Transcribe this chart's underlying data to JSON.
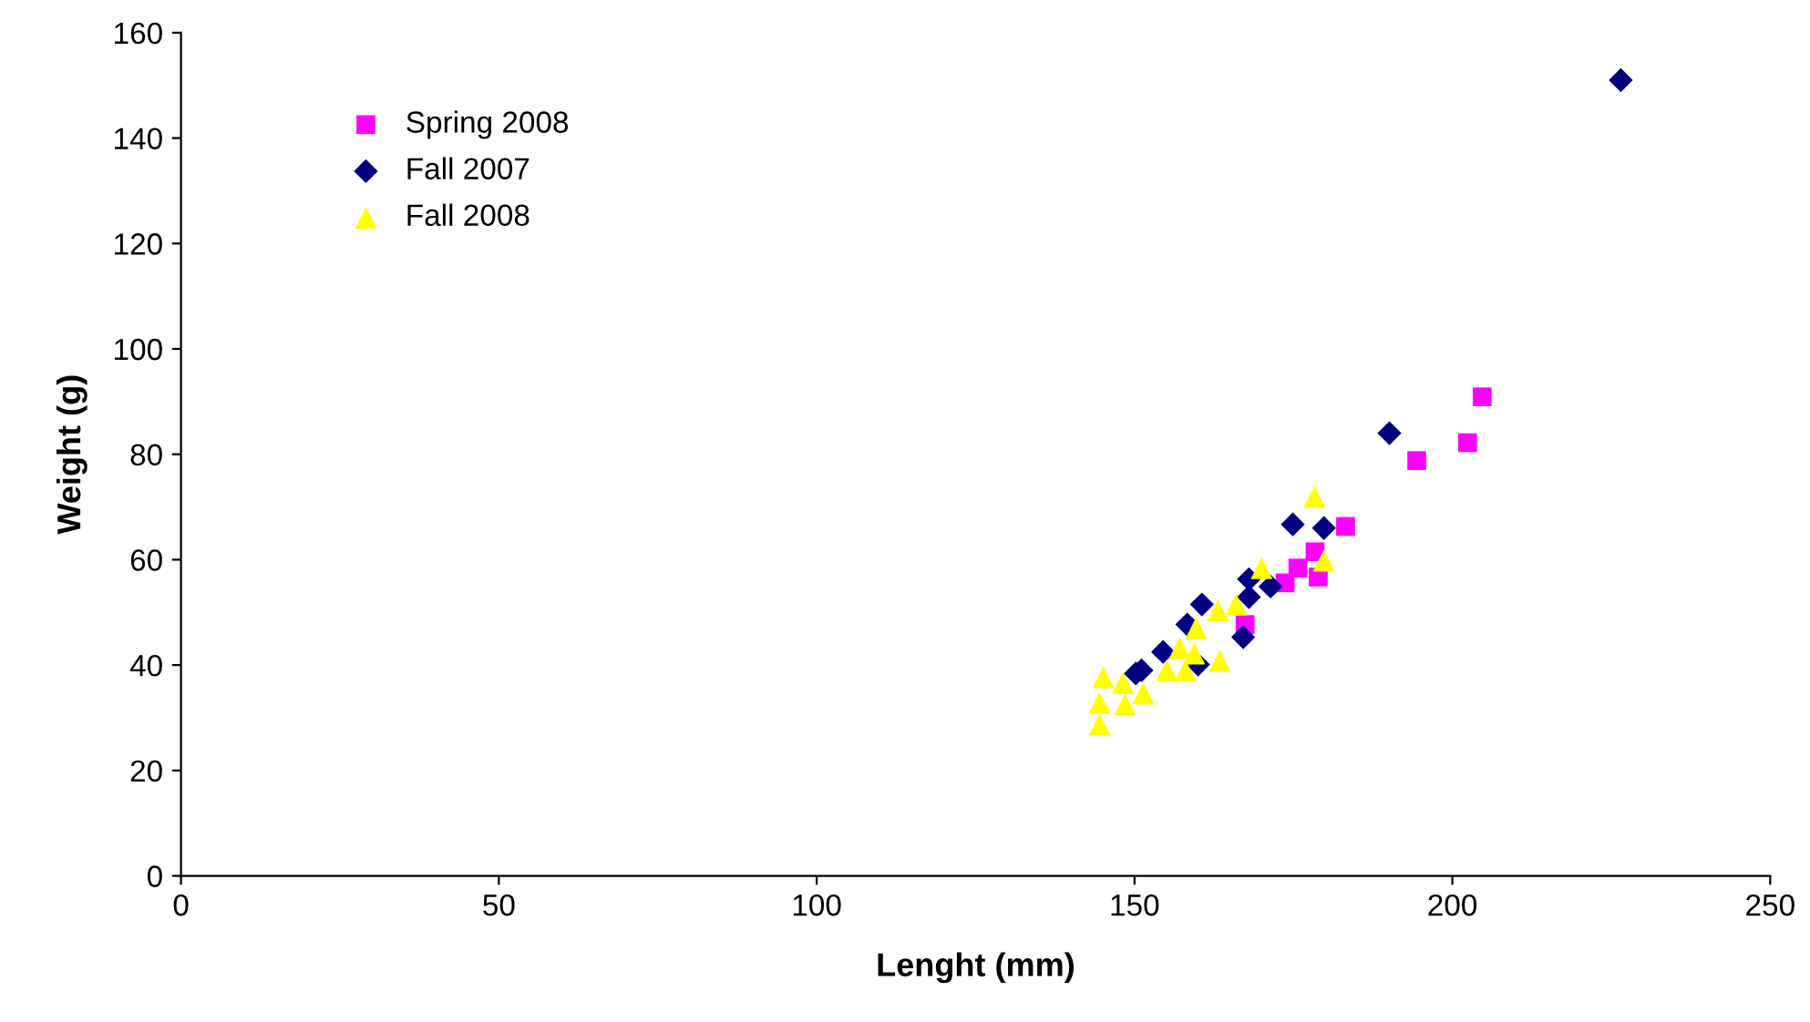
{
  "chart_data": {
    "type": "scatter",
    "xlabel": "Lenght (mm)",
    "ylabel": "Weight (g)",
    "xlim": [
      0,
      250
    ],
    "xticks": [
      0,
      50,
      100,
      150,
      200,
      250
    ],
    "ylim": [
      0,
      160
    ],
    "yticks": [
      0,
      20,
      40,
      60,
      80,
      100,
      120,
      140,
      160
    ],
    "grid": false,
    "legend": "top left",
    "series": [
      {
        "name": "Spring 2008",
        "color": "#ff00ff",
        "marker": "square",
        "x": [
          167.4,
          173.7,
          175.7,
          178.4,
          178.9,
          183.2,
          194.4,
          202.4,
          204.7
        ],
        "values": [
          47.7,
          55.6,
          58.4,
          61.5,
          56.7,
          66.3,
          78.8,
          82.2,
          90.9
        ]
      },
      {
        "name": "Fall 2007",
        "color": "#000080",
        "marker": "diamond",
        "x": [
          150.2,
          151.1,
          154.5,
          158.3,
          160.0,
          160.6,
          167.1,
          168.0,
          168.0,
          171.4,
          174.9,
          179.8,
          190.1,
          226.5
        ],
        "values": [
          38.4,
          39.0,
          42.5,
          47.7,
          40.1,
          51.5,
          45.3,
          52.9,
          56.3,
          54.9,
          66.7,
          66.0,
          84.0,
          151.0
        ]
      },
      {
        "name": "Fall 2008",
        "color": "#ffff00",
        "marker": "triangle",
        "x": [
          144.5,
          144.5,
          145.1,
          148.2,
          148.5,
          151.4,
          155.1,
          157.1,
          158.0,
          159.4,
          159.7,
          163.1,
          163.4,
          166.0,
          170.0,
          178.3,
          179.8
        ],
        "values": [
          28.7,
          32.8,
          37.7,
          36.6,
          32.5,
          34.6,
          39.0,
          43.2,
          39.0,
          42.2,
          47.0,
          50.4,
          40.8,
          51.5,
          58.4,
          71.9,
          59.8
        ]
      }
    ]
  }
}
